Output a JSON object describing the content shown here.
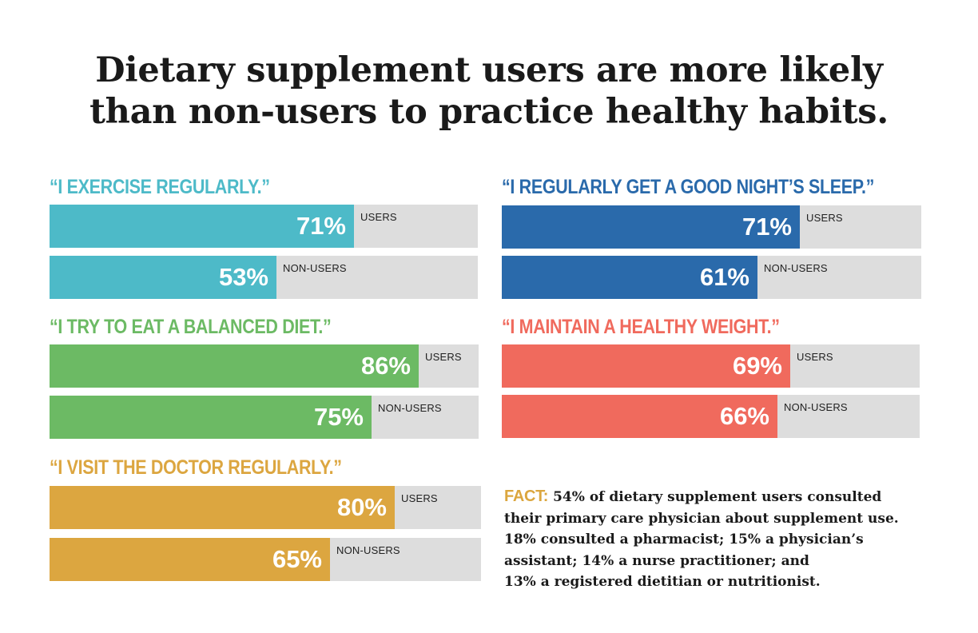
{
  "header": {
    "title_line1": "Dietary supplement users are more likely",
    "title_line2": "than non-users to practice healthy habits."
  },
  "chart_data": {
    "type": "bar",
    "title": "Dietary supplement users are more likely than non-users to practice healthy habits.",
    "unit": "%",
    "xlim": [
      0,
      100
    ],
    "panels": [
      {
        "question": "“I EXERCISE REGULARLY.”",
        "color": "#4dbac8",
        "series": [
          {
            "name": "USERS",
            "value": 71,
            "label": "71%"
          },
          {
            "name": "NON-USERS",
            "value": 53,
            "label": "53%"
          }
        ]
      },
      {
        "question": "“I TRY TO EAT A BALANCED DIET.”",
        "color": "#6cba64",
        "series": [
          {
            "name": "USERS",
            "value": 86,
            "label": "86%"
          },
          {
            "name": "NON-USERS",
            "value": 75,
            "label": "75%"
          }
        ]
      },
      {
        "question": "“I VISIT THE DOCTOR REGULARLY.”",
        "color": "#dca640",
        "series": [
          {
            "name": "USERS",
            "value": 80,
            "label": "80%"
          },
          {
            "name": "NON-USERS",
            "value": 65,
            "label": "65%"
          }
        ]
      },
      {
        "question": "“I REGULARLY GET A GOOD NIGHT’S SLEEP.”",
        "color": "#2a6aab",
        "series": [
          {
            "name": "USERS",
            "value": 71,
            "label": "71%"
          },
          {
            "name": "NON-USERS",
            "value": 61,
            "label": "61%"
          }
        ]
      },
      {
        "question": "“I MAINTAIN A HEALTHY WEIGHT.”",
        "color": "#f06a5d",
        "series": [
          {
            "name": "USERS",
            "value": 69,
            "label": "69%"
          },
          {
            "name": "NON-USERS",
            "value": 66,
            "label": "66%"
          }
        ]
      }
    ]
  },
  "fact": {
    "label": "FACT:",
    "line1": "54% of dietary supplement users consulted",
    "line2": "their primary care physician about supplement use.",
    "line3": "18% consulted a pharmacist; 15% a physician’s",
    "line4": "assistant; 14% a nurse practitioner; and",
    "line5": "13% a registered dietitian or nutritionist."
  }
}
